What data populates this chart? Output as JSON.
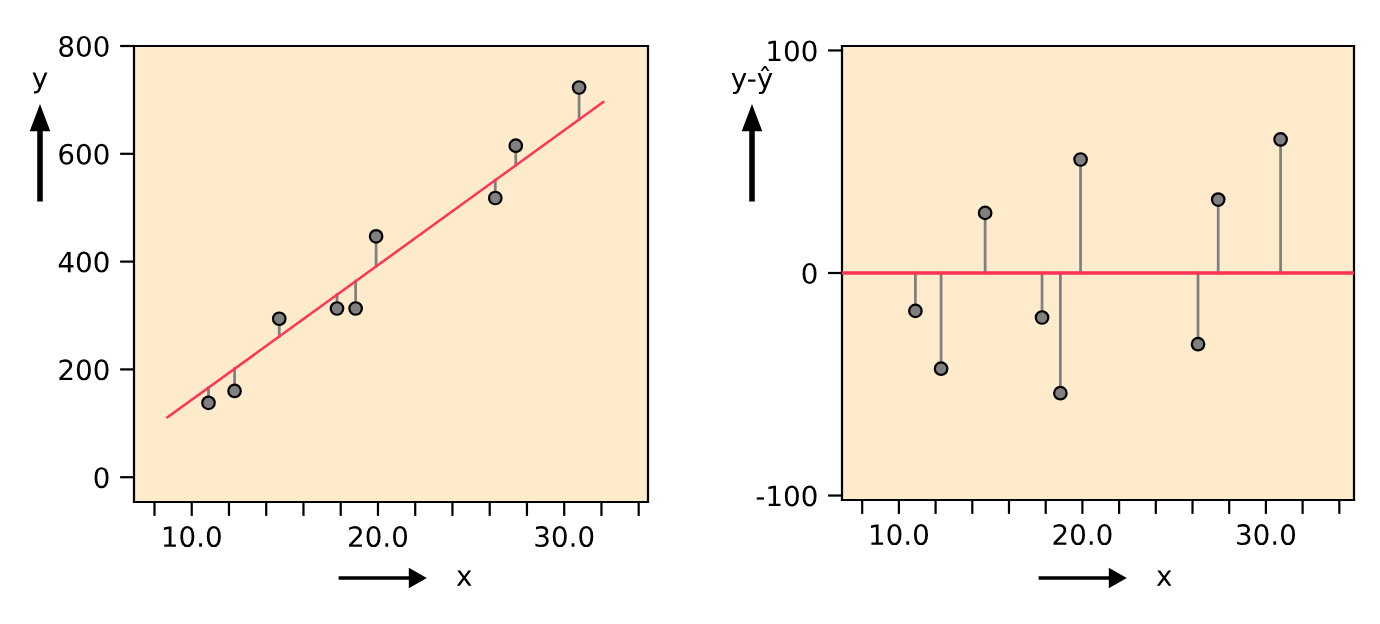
{
  "chart_data": [
    {
      "type": "scatter",
      "xlabel": "x",
      "ylabel": "y",
      "marker": "circle",
      "grid": false,
      "legend": false,
      "xlim": [
        6.9,
        34.5
      ],
      "ylim": [
        -46,
        800
      ],
      "xticks": [
        {
          "value": 8,
          "label": null
        },
        {
          "value": 10,
          "label": "10.0"
        },
        {
          "value": 12,
          "label": null
        },
        {
          "value": 14,
          "label": null
        },
        {
          "value": 16,
          "label": null
        },
        {
          "value": 18,
          "label": null
        },
        {
          "value": 20,
          "label": "20.0"
        },
        {
          "value": 22,
          "label": null
        },
        {
          "value": 24,
          "label": null
        },
        {
          "value": 26,
          "label": null
        },
        {
          "value": 28,
          "label": null
        },
        {
          "value": 30,
          "label": "30.0"
        },
        {
          "value": 32,
          "label": null
        },
        {
          "value": 34,
          "label": null
        }
      ],
      "yticks": [
        0,
        200,
        400,
        600,
        800
      ],
      "series": [
        {
          "color": "#808080",
          "x": [
            10.9,
            12.3,
            14.7,
            17.8,
            18.8,
            19.9,
            26.3,
            27.4,
            30.8
          ],
          "values": [
            138,
            160,
            294,
            313,
            313,
            447,
            518,
            615,
            723
          ],
          "errors": [
            [
              138,
              166
            ],
            [
              160,
              201
            ],
            [
              261,
              294
            ],
            [
              313,
              339
            ],
            [
              313,
              364
            ],
            [
              391,
              447
            ],
            [
              518,
              551
            ],
            [
              579,
              615
            ],
            [
              664,
              723
            ]
          ]
        },
        {
          "type": "line",
          "color": "#ff3355",
          "marker": "none",
          "line_style": "solid",
          "x": [
            8.7,
            32.1
          ],
          "values": [
            111,
            696
          ]
        }
      ]
    },
    {
      "type": "lollipop",
      "xlabel": "x",
      "ylabel": "y-ŷ",
      "marker": "circle",
      "grid": false,
      "legend": false,
      "xlim": [
        6.9,
        34.8
      ],
      "ylim": [
        -102,
        102
      ],
      "xticks": [
        {
          "value": 8,
          "label": null
        },
        {
          "value": 10,
          "label": "10.0"
        },
        {
          "value": 12,
          "label": null
        },
        {
          "value": 14,
          "label": null
        },
        {
          "value": 16,
          "label": null
        },
        {
          "value": 18,
          "label": null
        },
        {
          "value": 20,
          "label": "20.0"
        },
        {
          "value": 22,
          "label": null
        },
        {
          "value": 24,
          "label": null
        },
        {
          "value": 26,
          "label": null
        },
        {
          "value": 28,
          "label": null
        },
        {
          "value": 30,
          "label": "30.0"
        },
        {
          "value": 32,
          "label": null
        },
        {
          "value": 34,
          "label": null
        }
      ],
      "yticks": [
        -100,
        0,
        100
      ],
      "ref_lines": [
        {
          "axis": "y",
          "value": 0,
          "color": "#ff3355",
          "line_style": "solid"
        }
      ],
      "series": [
        {
          "color": "#808080",
          "x": [
            10.9,
            12.3,
            14.7,
            17.8,
            18.8,
            19.9,
            26.3,
            27.4,
            30.8
          ],
          "values": [
            -17,
            -43,
            27,
            -20,
            -54,
            51,
            -32,
            33,
            60
          ]
        }
      ]
    }
  ]
}
